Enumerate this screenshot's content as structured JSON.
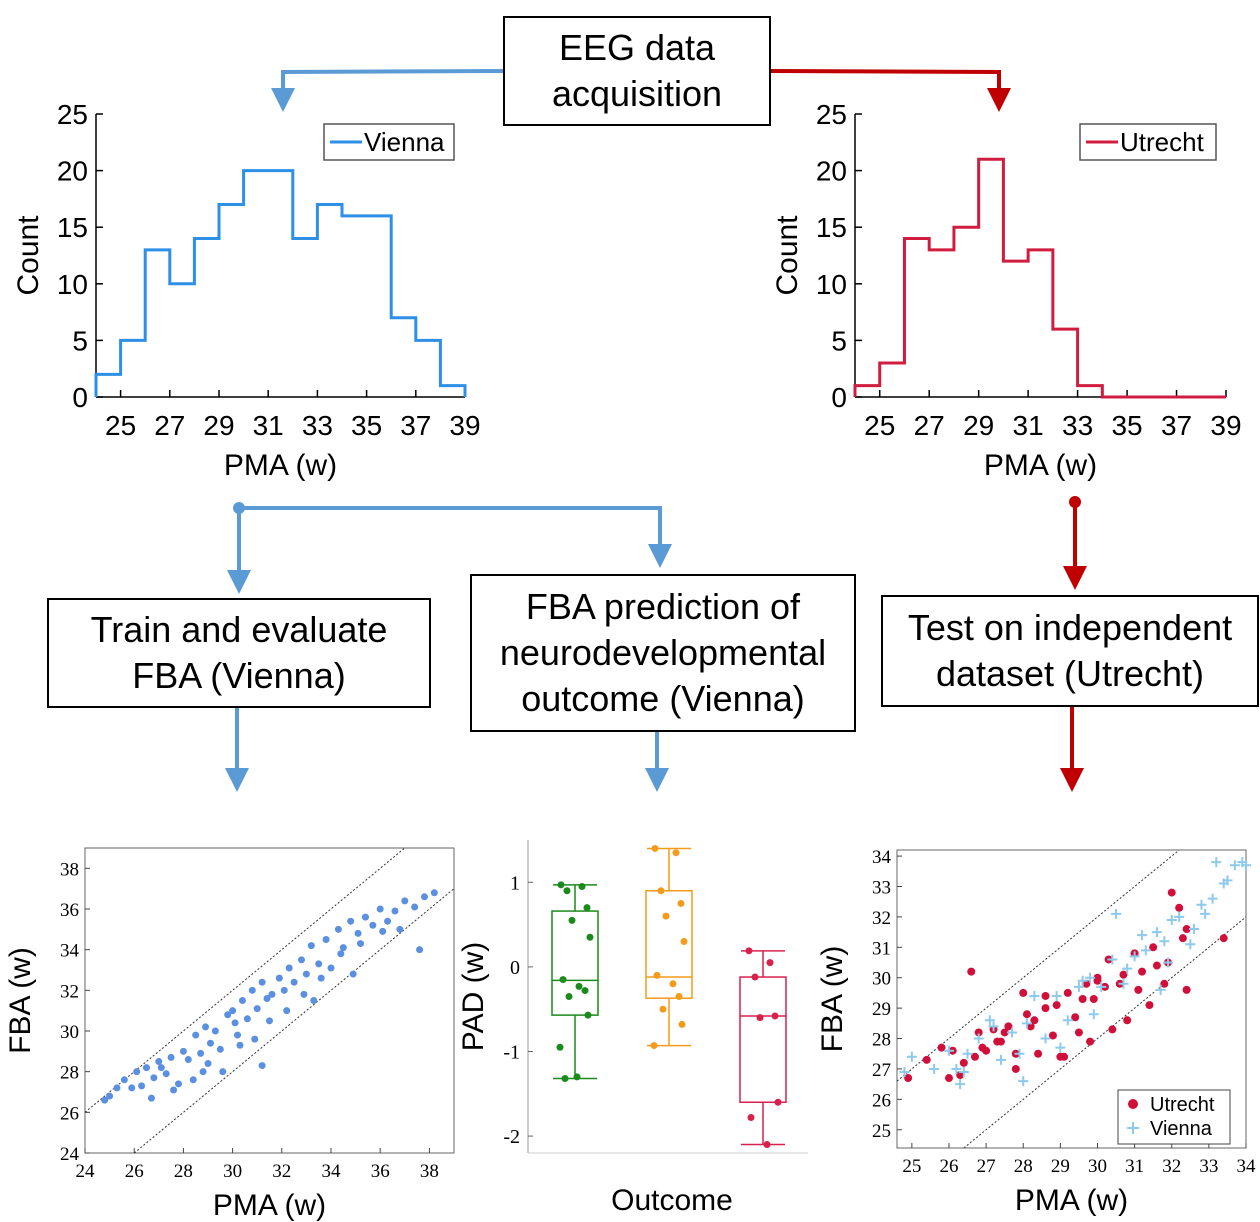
{
  "flow": {
    "acquisition": "EEG data\nacquisition",
    "train": "Train and evaluate\nFBA (Vienna)",
    "predict": "FBA prediction of\nneurodevelopmental\noutcome (Vienna)",
    "test": "Test on independent\ndataset (Utrecht)"
  },
  "colors": {
    "vienna_line": "#2e8fe6",
    "utrecht_line": "#d01c3f",
    "arrow_blue": "#5b9bd5",
    "arrow_red": "#c00000",
    "scatter_blue": "#5b8fe0",
    "utrecht_dot": "#d0103a",
    "vienna_plus": "#8ec9ee",
    "green": "#1a8a1a",
    "orange": "#f39b1c",
    "crimson": "#d8204c"
  },
  "chart_data": [
    {
      "id": "hist_vienna",
      "type": "line",
      "style": "stairs",
      "xlabel": "PMA (w)",
      "ylabel": "Count",
      "xlim": [
        24,
        39
      ],
      "ylim": [
        0,
        25
      ],
      "xticks": [
        25,
        27,
        29,
        31,
        33,
        35,
        37,
        39
      ],
      "yticks": [
        0,
        5,
        10,
        15,
        20,
        25
      ],
      "legend": "top-right",
      "series": [
        {
          "name": "Vienna",
          "color": "#2e8fe6",
          "bins": [
            24,
            25,
            26,
            27,
            28,
            29,
            30,
            31,
            32,
            33,
            34,
            35,
            36,
            37,
            38,
            39
          ],
          "counts": [
            2,
            5,
            13,
            10,
            14,
            17,
            20,
            20,
            14,
            17,
            16,
            16,
            7,
            5,
            1
          ]
        }
      ]
    },
    {
      "id": "hist_utrecht",
      "type": "line",
      "style": "stairs",
      "xlabel": "PMA (w)",
      "ylabel": "Count",
      "xlim": [
        24,
        39
      ],
      "ylim": [
        0,
        25
      ],
      "xticks": [
        25,
        27,
        29,
        31,
        33,
        35,
        37,
        39
      ],
      "yticks": [
        0,
        5,
        10,
        15,
        20,
        25
      ],
      "legend": "top-right",
      "series": [
        {
          "name": "Utrecht",
          "color": "#d01c3f",
          "bins": [
            24,
            25,
            26,
            27,
            28,
            29,
            30,
            31,
            32,
            33,
            34,
            35,
            36,
            37,
            38,
            39
          ],
          "counts": [
            1,
            3,
            14,
            13,
            15,
            21,
            12,
            13,
            6,
            1,
            0,
            0,
            0,
            0,
            0
          ]
        }
      ]
    },
    {
      "id": "scatter_vienna",
      "type": "scatter",
      "xlabel": "PMA (w)",
      "ylabel": "FBA (w)",
      "xlim": [
        24,
        39
      ],
      "ylim": [
        24,
        39
      ],
      "xticks": [
        24,
        26,
        28,
        30,
        32,
        34,
        36,
        38
      ],
      "yticks": [
        24,
        26,
        28,
        30,
        32,
        34,
        36,
        38
      ],
      "bounds_offset": 2,
      "series": [
        {
          "name": "",
          "color": "#5b8fe0",
          "x": [
            24.8,
            25.0,
            25.6,
            25.9,
            26.1,
            26.3,
            26.5,
            26.8,
            27.0,
            27.3,
            27.5,
            27.8,
            28.0,
            28.2,
            28.5,
            28.7,
            28.9,
            29.1,
            29.3,
            29.5,
            29.8,
            30.0,
            30.2,
            30.4,
            30.6,
            30.8,
            31.0,
            31.2,
            31.4,
            31.6,
            31.9,
            32.1,
            32.3,
            32.5,
            32.8,
            33.0,
            33.2,
            33.5,
            33.8,
            34.0,
            34.3,
            34.5,
            34.8,
            35.1,
            35.4,
            35.7,
            36.0,
            36.3,
            36.6,
            37.0,
            37.4,
            37.8,
            38.2,
            26.7,
            27.6,
            28.4,
            29.0,
            29.6,
            30.3,
            30.9,
            31.5,
            32.2,
            32.9,
            33.6,
            34.4,
            35.2,
            36.1,
            37.6,
            25.3,
            27.1,
            28.8,
            30.1,
            31.2,
            33.3,
            34.9,
            36.8
          ],
          "y": [
            26.6,
            26.8,
            27.6,
            27.2,
            28.0,
            27.3,
            28.2,
            27.7,
            28.5,
            27.9,
            28.7,
            27.4,
            29.0,
            28.6,
            29.8,
            28.9,
            30.2,
            29.4,
            30.0,
            29.1,
            30.8,
            31.0,
            29.8,
            31.5,
            30.6,
            32.0,
            31.1,
            32.4,
            31.6,
            31.8,
            32.6,
            32.0,
            33.1,
            32.4,
            33.5,
            32.8,
            34.2,
            33.3,
            34.5,
            33.1,
            35.0,
            34.1,
            35.4,
            34.8,
            35.6,
            35.2,
            36.0,
            35.4,
            35.9,
            36.4,
            36.1,
            36.6,
            36.8,
            26.7,
            27.1,
            27.6,
            28.4,
            28.0,
            29.3,
            29.6,
            30.5,
            31.0,
            31.8,
            32.6,
            33.8,
            34.3,
            34.9,
            34.0,
            27.2,
            28.2,
            28.0,
            30.4,
            28.3,
            31.5,
            32.8,
            35.0
          ]
        }
      ]
    },
    {
      "id": "box_pad",
      "type": "box",
      "xlabel": "Outcome",
      "ylabel": "PAD (w)",
      "ylim": [
        -2.2,
        1.5
      ],
      "yticks": [
        -2,
        -1,
        0,
        1
      ],
      "groups": [
        {
          "color": "#1a8a1a",
          "whisker_low": -1.32,
          "q1": -0.57,
          "median": -0.16,
          "q3": 0.66,
          "whisker_high": 0.97,
          "points": [
            0.97,
            0.95,
            0.9,
            0.7,
            0.55,
            0.35,
            -0.15,
            -0.23,
            -0.28,
            -0.35,
            -0.57,
            -0.95,
            -1.3,
            -1.32
          ]
        },
        {
          "color": "#f39b1c",
          "whisker_low": -0.93,
          "q1": -0.37,
          "median": -0.12,
          "q3": 0.9,
          "whisker_high": 1.4,
          "points": [
            1.4,
            1.35,
            0.9,
            0.75,
            0.6,
            0.3,
            -0.1,
            -0.2,
            -0.35,
            -0.5,
            -0.68,
            -0.93
          ]
        },
        {
          "color": "#d8204c",
          "whisker_low": -2.1,
          "q1": -1.6,
          "median": -0.58,
          "q3": -0.12,
          "whisker_high": 0.19,
          "points": [
            0.19,
            0.05,
            -0.12,
            -0.58,
            -0.6,
            -1.6,
            -1.78,
            -2.1
          ]
        }
      ]
    },
    {
      "id": "scatter_test",
      "type": "scatter",
      "xlabel": "PMA (w)",
      "ylabel": "FBA (w)",
      "xlim": [
        24.6,
        34
      ],
      "ylim": [
        24.4,
        34.2
      ],
      "xticks": [
        25,
        26,
        27,
        28,
        29,
        30,
        31,
        32,
        33,
        34
      ],
      "yticks": [
        25,
        26,
        27,
        28,
        29,
        30,
        31,
        32,
        33,
        34
      ],
      "bounds_offset": 2,
      "legend": "bottom-right",
      "series": [
        {
          "name": "Utrecht",
          "color": "#d0103a",
          "marker": "dot",
          "x": [
            24.9,
            25.4,
            25.8,
            26.0,
            26.1,
            26.3,
            26.4,
            26.6,
            26.8,
            27.0,
            27.2,
            27.4,
            27.6,
            27.8,
            28.0,
            28.2,
            28.4,
            28.6,
            28.8,
            29.0,
            29.2,
            29.4,
            29.6,
            29.8,
            30.0,
            30.2,
            30.4,
            30.6,
            30.8,
            31.0,
            31.2,
            31.4,
            31.6,
            31.8,
            32.0,
            32.2,
            32.4,
            26.7,
            27.5,
            28.3,
            29.1,
            29.9,
            30.7,
            31.5,
            32.3,
            33.4,
            27.3,
            28.9,
            30.3,
            31.1,
            26.9,
            28.6,
            30.0,
            31.9,
            32.4,
            29.5,
            27.8,
            28.1,
            29.7
          ],
          "y": [
            26.7,
            27.3,
            27.7,
            26.7,
            27.6,
            26.8,
            27.2,
            30.2,
            28.2,
            27.6,
            28.3,
            27.9,
            28.4,
            27.5,
            29.5,
            28.4,
            27.5,
            29.0,
            28.1,
            27.4,
            29.5,
            28.7,
            29.3,
            27.9,
            30.0,
            29.7,
            28.3,
            29.8,
            28.6,
            30.8,
            30.2,
            29.1,
            30.4,
            29.8,
            32.8,
            32.3,
            31.6,
            27.4,
            28.2,
            28.6,
            27.4,
            29.3,
            30.1,
            31.0,
            31.3,
            31.3,
            27.9,
            29.1,
            30.6,
            29.6,
            27.7,
            29.4,
            29.9,
            30.5,
            29.6,
            28.2,
            27.0,
            28.8,
            29.8
          ]
        },
        {
          "name": "Vienna",
          "color": "#8ec9ee",
          "marker": "plus",
          "x": [
            24.8,
            25.0,
            25.6,
            26.0,
            26.2,
            26.3,
            26.5,
            26.8,
            27.1,
            27.4,
            27.7,
            28.0,
            28.3,
            28.6,
            28.9,
            29.2,
            29.5,
            29.8,
            30.1,
            30.4,
            30.7,
            31.0,
            31.3,
            31.6,
            31.9,
            32.2,
            32.5,
            32.8,
            33.1,
            33.4,
            33.7,
            33.9,
            26.4,
            27.2,
            28.1,
            29.0,
            29.9,
            30.8,
            31.7,
            32.6,
            33.5,
            34.0,
            27.9,
            29.6,
            31.2,
            32.9,
            33.2,
            32.0,
            30.5,
            31.8
          ],
          "y": [
            26.9,
            27.4,
            27.0,
            27.6,
            27.0,
            26.5,
            27.5,
            28.0,
            28.6,
            27.3,
            28.2,
            26.6,
            29.4,
            28.0,
            29.4,
            28.6,
            29.7,
            30.0,
            29.7,
            30.6,
            29.8,
            30.7,
            30.9,
            31.5,
            30.5,
            32.0,
            31.1,
            32.4,
            32.6,
            33.1,
            33.7,
            33.8,
            26.9,
            28.4,
            28.5,
            27.7,
            28.8,
            30.3,
            29.6,
            31.6,
            33.2,
            33.7,
            27.5,
            29.9,
            31.4,
            32.1,
            33.8,
            31.9,
            32.1,
            31.2
          ]
        }
      ]
    }
  ]
}
